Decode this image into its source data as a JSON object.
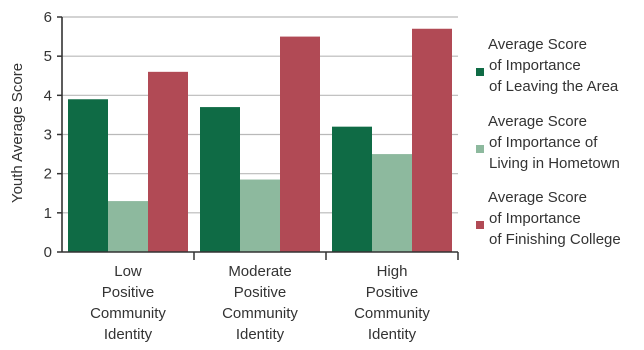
{
  "chart_data": {
    "type": "bar",
    "title": "",
    "xlabel": "",
    "ylabel": "Youth Average Score",
    "ylim": [
      0,
      6
    ],
    "yticks": [
      0,
      1,
      2,
      3,
      4,
      5,
      6
    ],
    "grid": true,
    "legend_position": "right",
    "categories": [
      [
        "Low",
        "Positive",
        "Community",
        "Identity"
      ],
      [
        "Moderate",
        "Positive",
        "Community",
        "Identity"
      ],
      [
        "High",
        "Positive",
        "Community",
        "Identity"
      ]
    ],
    "series": [
      {
        "name": [
          "Average Score",
          "of Importance",
          "of Leaving the Area"
        ],
        "color": "#0f6b45",
        "values": [
          3.9,
          3.7,
          3.2
        ]
      },
      {
        "name": [
          "Average Score",
          "of Importance of",
          "Living in Hometown"
        ],
        "color": "#8db99e",
        "values": [
          1.3,
          1.85,
          2.5
        ]
      },
      {
        "name": [
          "Average Score",
          "of Importance",
          "of Finishing College"
        ],
        "color": "#b14a55",
        "values": [
          4.6,
          5.5,
          5.7
        ]
      }
    ]
  }
}
